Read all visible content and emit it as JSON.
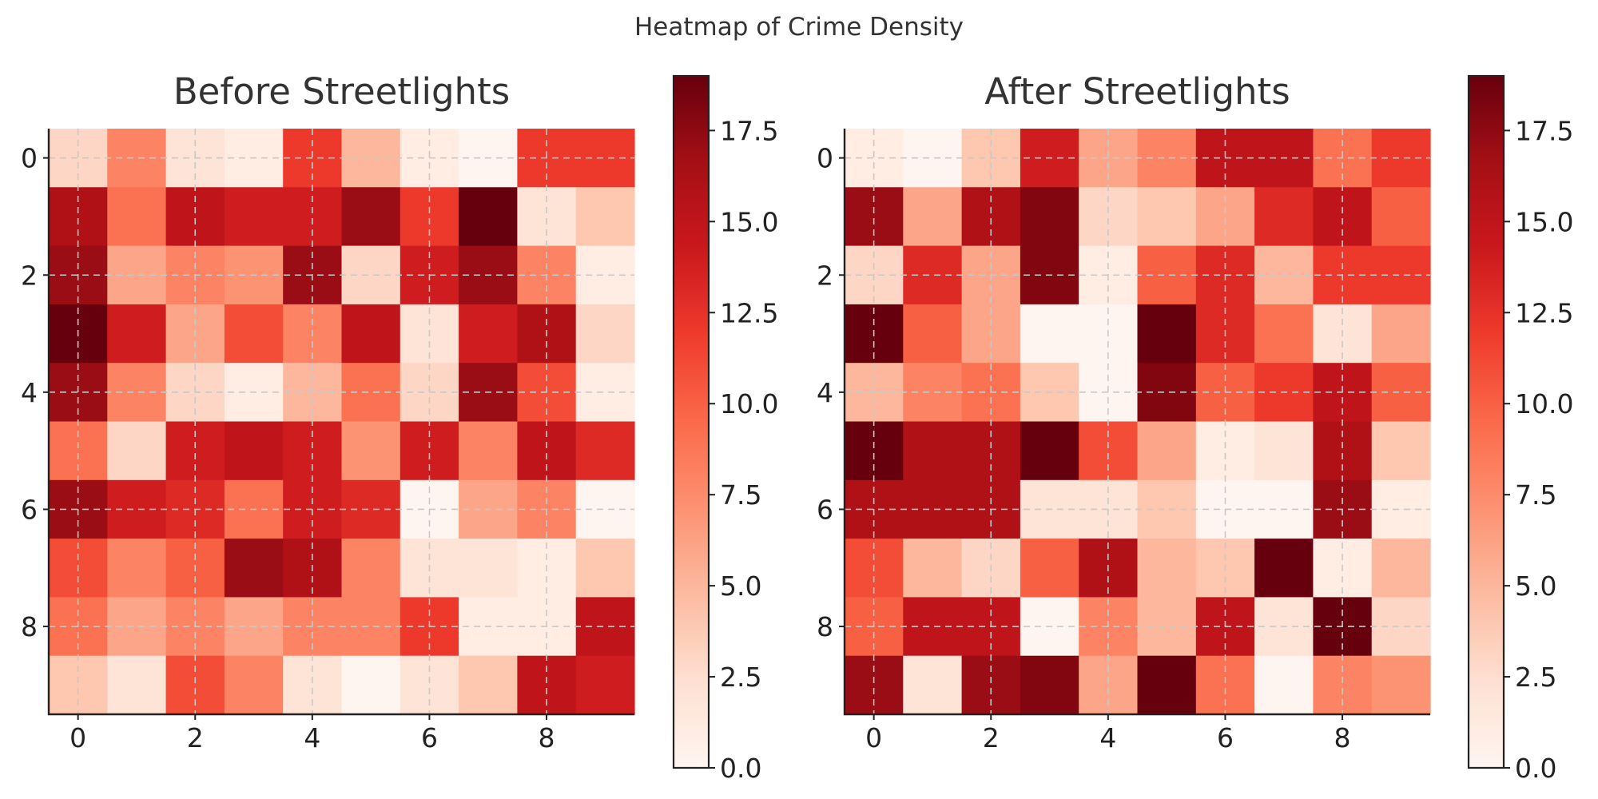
{
  "figure": {
    "suptitle": "Heatmap of Crime Density"
  },
  "chart_data": [
    {
      "type": "heatmap",
      "title": "Before Streetlights",
      "x_ticks": [
        0,
        2,
        4,
        6,
        8
      ],
      "y_ticks": [
        0,
        2,
        4,
        6,
        8
      ],
      "colorbar_ticks": [
        "0.0",
        "2.5",
        "5.0",
        "7.5",
        "10.0",
        "12.5",
        "15.0",
        "17.5"
      ],
      "vmin": 0,
      "vmax": 19,
      "colormap": "Reds",
      "grid": true,
      "values": [
        [
          3,
          8,
          2,
          1,
          12,
          5,
          1,
          0,
          12,
          12
        ],
        [
          16,
          9,
          15,
          14,
          14,
          17,
          12,
          19,
          2,
          4
        ],
        [
          17,
          6,
          8,
          7,
          17,
          3,
          14,
          17,
          8,
          1
        ],
        [
          19,
          14,
          6,
          11,
          8,
          15,
          2,
          14,
          16,
          3
        ],
        [
          17,
          8,
          3,
          1,
          5,
          9,
          3,
          17,
          11,
          1
        ],
        [
          9,
          3,
          14,
          15,
          14,
          7,
          14,
          8,
          15,
          13
        ],
        [
          17,
          14,
          13,
          9,
          14,
          13,
          0,
          6,
          8,
          0
        ],
        [
          11,
          8,
          10,
          17,
          16,
          8,
          2,
          2,
          1,
          4
        ],
        [
          9,
          6,
          8,
          6,
          8,
          8,
          12,
          1,
          1,
          15
        ],
        [
          4,
          2,
          11,
          8,
          2,
          0,
          2,
          4,
          15,
          14
        ]
      ]
    },
    {
      "type": "heatmap",
      "title": "After Streetlights",
      "x_ticks": [
        0,
        2,
        4,
        6,
        8
      ],
      "y_ticks": [
        0,
        2,
        4,
        6,
        8
      ],
      "colorbar_ticks": [
        "0.0",
        "2.5",
        "5.0",
        "7.5",
        "10.0",
        "12.5",
        "15.0",
        "17.5"
      ],
      "vmin": 0,
      "vmax": 19,
      "colormap": "Reds",
      "grid": true,
      "values": [
        [
          1,
          0,
          4,
          14,
          6,
          8,
          15,
          15,
          9,
          12
        ],
        [
          17,
          6,
          16,
          18,
          3,
          4,
          6,
          13,
          15,
          10
        ],
        [
          3,
          13,
          6,
          18,
          1,
          10,
          13,
          5,
          12,
          12
        ],
        [
          19,
          10,
          6,
          0,
          0,
          19,
          13,
          9,
          2,
          6
        ],
        [
          5,
          8,
          9,
          4,
          0,
          18,
          10,
          12,
          15,
          10
        ],
        [
          19,
          16,
          16,
          19,
          11,
          6,
          1,
          2,
          16,
          4
        ],
        [
          16,
          16,
          16,
          2,
          2,
          4,
          0,
          0,
          17,
          1
        ],
        [
          11,
          5,
          3,
          10,
          16,
          5,
          4,
          19,
          1,
          5
        ],
        [
          10,
          15,
          15,
          0,
          8,
          5,
          15,
          2,
          19,
          3
        ],
        [
          17,
          2,
          17,
          18,
          6,
          19,
          9,
          0,
          8,
          7
        ]
      ]
    }
  ]
}
